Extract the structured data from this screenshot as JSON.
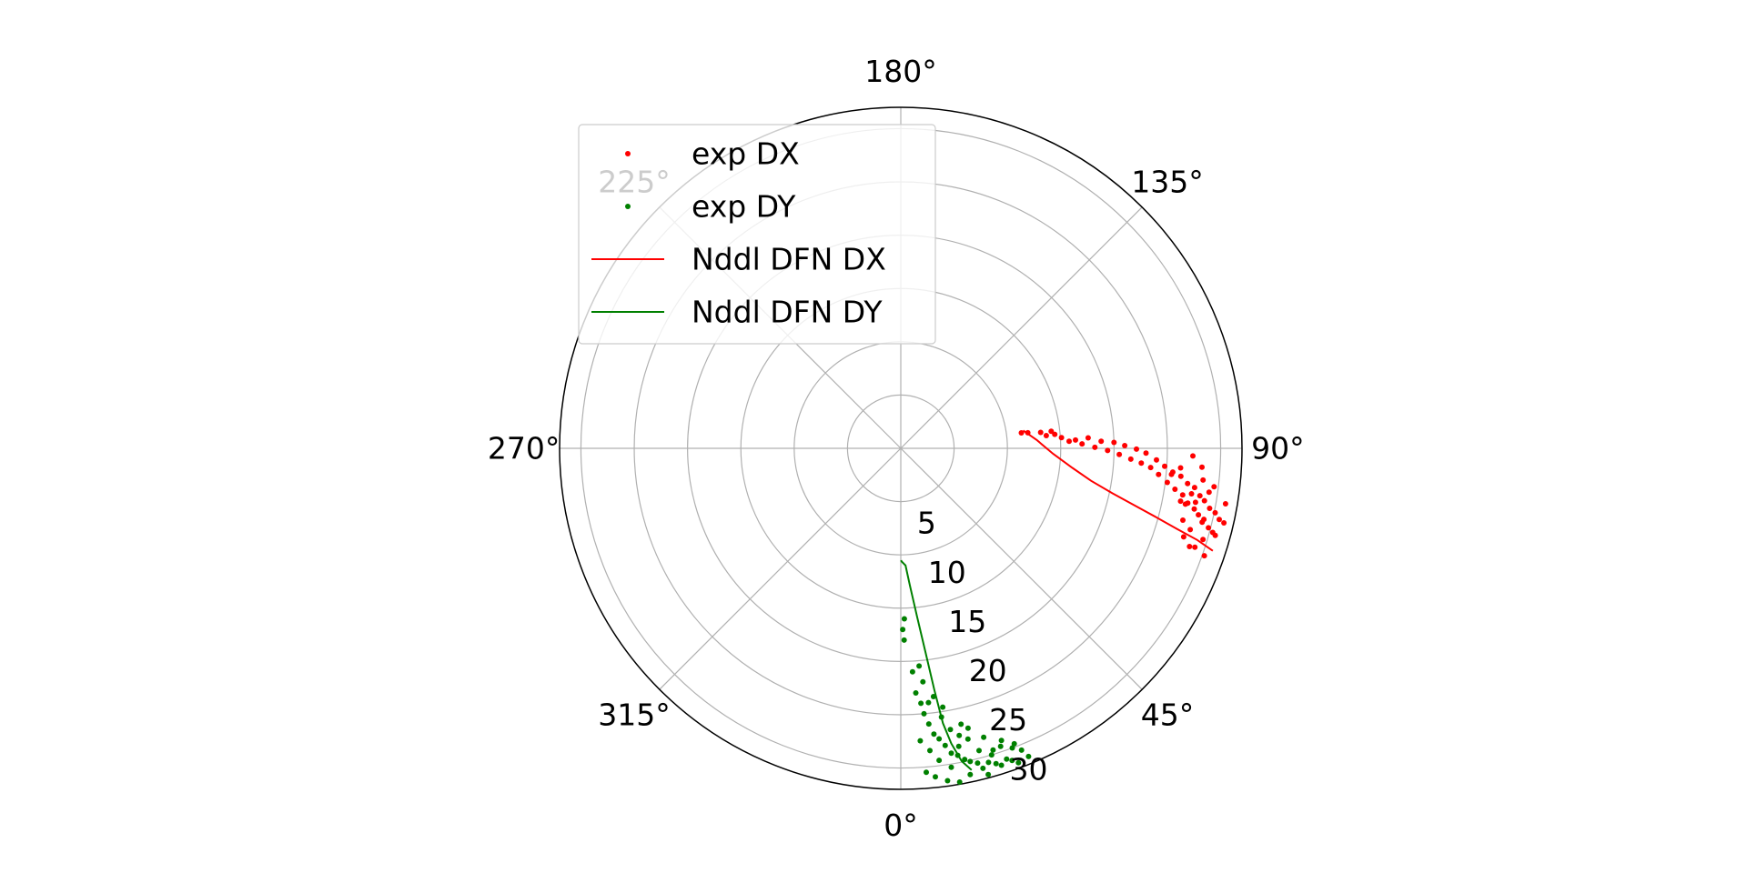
{
  "chart_data": {
    "type": "scatter",
    "projection": "polar",
    "theta_zero_location": "bottom",
    "theta_direction": "counterclockwise",
    "theta_unit": "degrees",
    "r_max": 32,
    "r_gridlines": [
      5,
      10,
      15,
      20,
      25,
      30
    ],
    "r_tick_labels": [
      "5",
      "10",
      "15",
      "20",
      "25",
      "30"
    ],
    "theta_gridlines": [
      0,
      45,
      90,
      135,
      180,
      225,
      270,
      315
    ],
    "theta_tick_labels": [
      "0°",
      "45°",
      "90°",
      "135°",
      "180°",
      "225°",
      "270°",
      "315°"
    ],
    "grid": true,
    "legend_position": "upper-left",
    "series": [
      {
        "name": "exp DX",
        "kind": "scatter",
        "color": "#ff0000",
        "points": [
          [
            97.3,
            11.4
          ],
          [
            97.0,
            12.0
          ],
          [
            96.5,
            13.2
          ],
          [
            95.0,
            13.7
          ],
          [
            96.5,
            14.2
          ],
          [
            95.2,
            14.5
          ],
          [
            93.8,
            15.1
          ],
          [
            92.4,
            15.8
          ],
          [
            92.7,
            16.4
          ],
          [
            91.4,
            17.0
          ],
          [
            93.2,
            17.6
          ],
          [
            90.3,
            18.2
          ],
          [
            92.0,
            18.8
          ],
          [
            89.4,
            19.4
          ],
          [
            91.6,
            20.0
          ],
          [
            88.4,
            20.5
          ],
          [
            90.7,
            21.0
          ],
          [
            87.3,
            21.6
          ],
          [
            89.8,
            22.1
          ],
          [
            86.5,
            22.6
          ],
          [
            88.9,
            23.0
          ],
          [
            85.6,
            23.5
          ],
          [
            87.4,
            24.0
          ],
          [
            84.2,
            24.3
          ],
          [
            86.1,
            24.8
          ],
          [
            82.7,
            25.2
          ],
          [
            85.0,
            25.6
          ],
          [
            81.5,
            26.0
          ],
          [
            84.3,
            26.4
          ],
          [
            80.6,
            26.8
          ],
          [
            83.0,
            27.1
          ],
          [
            79.2,
            27.4
          ],
          [
            82.4,
            27.8
          ],
          [
            78.3,
            28.1
          ],
          [
            81.0,
            28.4
          ],
          [
            77.4,
            28.6
          ],
          [
            80.2,
            28.9
          ],
          [
            76.8,
            29.2
          ],
          [
            79.0,
            29.5
          ],
          [
            75.5,
            29.8
          ],
          [
            78.4,
            30.1
          ],
          [
            74.9,
            30.3
          ],
          [
            77.4,
            30.6
          ],
          [
            81.9,
            29.2
          ],
          [
            76.2,
            29.1
          ],
          [
            79.6,
            28.1
          ],
          [
            73.2,
            29.6
          ],
          [
            71.4,
            29.1
          ],
          [
            78.9,
            27.2
          ],
          [
            84.5,
            25.5
          ],
          [
            80.3,
            30.9
          ],
          [
            77.0,
            31.1
          ],
          [
            74.5,
            30.6
          ],
          [
            70.5,
            30.2
          ],
          [
            83.0,
            29.6
          ],
          [
            86.4,
            28.3
          ],
          [
            88.5,
            27.4
          ],
          [
            81.1,
            27.6
          ],
          [
            75.7,
            27.3
          ],
          [
            72.6,
            27.8
          ],
          [
            86.0,
            26.3
          ],
          [
            84.0,
            28.5
          ],
          [
            79.3,
            26.7
          ],
          [
            71.2,
            28.6
          ],
          [
            74.3,
            28.2
          ]
        ]
      },
      {
        "name": "exp DY",
        "kind": "scatter",
        "color": "#008000",
        "points": [
          [
            1.0,
            18.0
          ],
          [
            1.2,
            16.0
          ],
          [
            0.6,
            17.0
          ],
          [
            3.0,
            21.0
          ],
          [
            3.5,
            23.0
          ],
          [
            4.5,
            24.0
          ],
          [
            5.0,
            25.0
          ],
          [
            5.8,
            26.0
          ],
          [
            6.6,
            27.0
          ],
          [
            7.5,
            27.5
          ],
          [
            8.5,
            28.2
          ],
          [
            9.4,
            29.0
          ],
          [
            10.5,
            29.3
          ],
          [
            11.6,
            29.8
          ],
          [
            12.5,
            30.1
          ],
          [
            13.7,
            30.4
          ],
          [
            14.4,
            31.0
          ],
          [
            15.6,
            30.6
          ],
          [
            16.8,
            30.9
          ],
          [
            17.6,
            31.2
          ],
          [
            18.8,
            30.8
          ],
          [
            19.6,
            31.1
          ],
          [
            20.5,
            31.5
          ],
          [
            21.8,
            30.5
          ],
          [
            22.5,
            31.3
          ],
          [
            14.5,
            29.3
          ],
          [
            13.0,
            28.0
          ],
          [
            11.5,
            27.5
          ],
          [
            10.0,
            26.8
          ],
          [
            8.6,
            25.5
          ],
          [
            6.2,
            24.0
          ],
          [
            7.5,
            23.5
          ],
          [
            5.4,
            22.0
          ],
          [
            4.8,
            20.5
          ],
          [
            9.2,
            24.6
          ],
          [
            12.3,
            26.5
          ],
          [
            16.0,
            28.2
          ],
          [
            18.5,
            29.5
          ],
          [
            20.4,
            30.0
          ],
          [
            3.8,
            27.5
          ],
          [
            5.5,
            28.5
          ],
          [
            7.0,
            29.5
          ],
          [
            4.5,
            30.5
          ],
          [
            6.0,
            31.0
          ],
          [
            8.0,
            31.5
          ],
          [
            10.0,
            31.8
          ],
          [
            12.0,
            31.3
          ],
          [
            9.0,
            30.3
          ],
          [
            11.0,
            28.5
          ],
          [
            15.0,
            31.7
          ],
          [
            17.0,
            29.6
          ],
          [
            19.0,
            29.0
          ],
          [
            21.0,
            29.7
          ],
          [
            13.5,
            27.0
          ],
          [
            16.5,
            30.0
          ]
        ]
      },
      {
        "name": "Nddl DFN DX",
        "kind": "line",
        "color": "#ff0000",
        "points": [
          [
            98.3,
            11.6
          ],
          [
            93.4,
            12.8
          ],
          [
            87.9,
            14.3
          ],
          [
            83.5,
            16.2
          ],
          [
            80.3,
            18.1
          ],
          [
            78.0,
            20.3
          ],
          [
            76.3,
            22.5
          ],
          [
            74.9,
            24.8
          ],
          [
            73.7,
            27.0
          ],
          [
            72.8,
            29.1
          ],
          [
            71.8,
            30.8
          ]
        ]
      },
      {
        "name": "Nddl DFN DY",
        "kind": "line",
        "color": "#008000",
        "points": [
          [
            0.2,
            10.5
          ],
          [
            0.3,
            10.6
          ],
          [
            2.3,
            11.0
          ],
          [
            3.8,
            12.9
          ],
          [
            5.5,
            15.8
          ],
          [
            6.9,
            19.3
          ],
          [
            7.9,
            22.9
          ],
          [
            8.7,
            26.1
          ],
          [
            9.7,
            28.1
          ],
          [
            11.0,
            29.9
          ],
          [
            12.4,
            30.9
          ]
        ]
      }
    ]
  }
}
